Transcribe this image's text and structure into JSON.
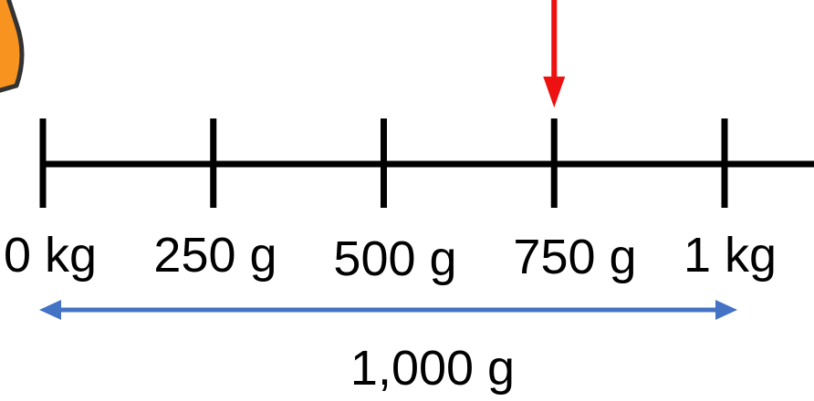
{
  "number_line": {
    "ticks": [
      {
        "label": "0 kg",
        "value_g": 0
      },
      {
        "label": "250 g",
        "value_g": 250
      },
      {
        "label": "500 g",
        "value_g": 500
      },
      {
        "label": "750 g",
        "value_g": 750
      },
      {
        "label": "1 kg",
        "value_g": 1000
      }
    ],
    "marker_value_g": 750,
    "marker_color": "#ee1111",
    "line_color": "#000000"
  },
  "span": {
    "label": "1,000 g",
    "from_g": 0,
    "to_g": 1000,
    "color": "#4472c4"
  },
  "decoration": {
    "shape_color": "#f7931e",
    "outline_color": "#333333"
  }
}
